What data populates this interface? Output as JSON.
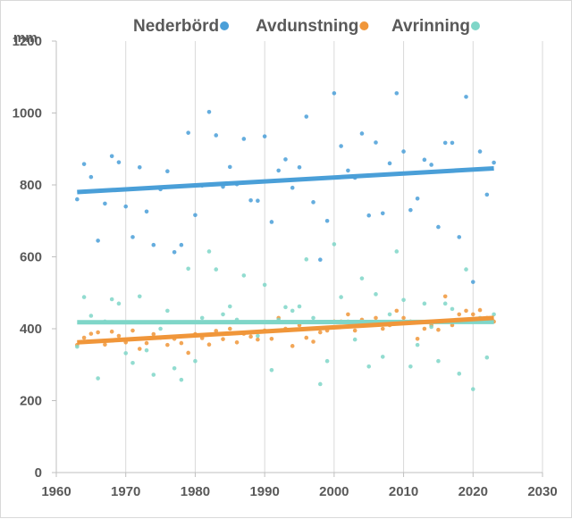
{
  "chart_data": {
    "type": "scatter",
    "ylabel": "mm",
    "xlim": [
      1960,
      2030
    ],
    "ylim": [
      0,
      1200
    ],
    "x_ticks": [
      1960,
      1970,
      1980,
      1990,
      2000,
      2010,
      2020,
      2030
    ],
    "y_ticks": [
      0,
      200,
      400,
      600,
      800,
      1000,
      1200
    ],
    "grid": "vertical",
    "legend_position": "top",
    "series": [
      {
        "name": "Nederbörd",
        "color": "#4a9fd8",
        "trend": [
          [
            1963,
            780
          ],
          [
            2023,
            846
          ]
        ],
        "points": [
          [
            1963,
            760
          ],
          [
            1964,
            858
          ],
          [
            1965,
            822
          ],
          [
            1966,
            645
          ],
          [
            1967,
            748
          ],
          [
            1968,
            880
          ],
          [
            1969,
            863
          ],
          [
            1970,
            740
          ],
          [
            1971,
            655
          ],
          [
            1972,
            849
          ],
          [
            1973,
            726
          ],
          [
            1974,
            633
          ],
          [
            1975,
            788
          ],
          [
            1976,
            838
          ],
          [
            1977,
            613
          ],
          [
            1978,
            633
          ],
          [
            1979,
            945
          ],
          [
            1980,
            716
          ],
          [
            1981,
            798
          ],
          [
            1982,
            1003
          ],
          [
            1983,
            938
          ],
          [
            1984,
            795
          ],
          [
            1985,
            850
          ],
          [
            1986,
            802
          ],
          [
            1987,
            928
          ],
          [
            1988,
            757
          ],
          [
            1989,
            756
          ],
          [
            1990,
            935
          ],
          [
            1991,
            697
          ],
          [
            1992,
            840
          ],
          [
            1993,
            871
          ],
          [
            1994,
            792
          ],
          [
            1995,
            849
          ],
          [
            1996,
            990
          ],
          [
            1997,
            752
          ],
          [
            1998,
            592
          ],
          [
            1999,
            700
          ],
          [
            2000,
            1055
          ],
          [
            2001,
            908
          ],
          [
            2002,
            840
          ],
          [
            2003,
            820
          ],
          [
            2004,
            943
          ],
          [
            2005,
            715
          ],
          [
            2006,
            918
          ],
          [
            2007,
            721
          ],
          [
            2008,
            860
          ],
          [
            2009,
            1055
          ],
          [
            2010,
            893
          ],
          [
            2011,
            730
          ],
          [
            2012,
            762
          ],
          [
            2013,
            870
          ],
          [
            2014,
            856
          ],
          [
            2015,
            683
          ],
          [
            2016,
            917
          ],
          [
            2017,
            917
          ],
          [
            2018,
            655
          ],
          [
            2019,
            1045
          ],
          [
            2020,
            530
          ],
          [
            2021,
            893
          ],
          [
            2022,
            773
          ],
          [
            2023,
            862
          ]
        ]
      },
      {
        "name": "Avdunstning",
        "color": "#f0963a",
        "trend": [
          [
            1963,
            362
          ],
          [
            2023,
            430
          ]
        ],
        "points": [
          [
            1963,
            355
          ],
          [
            1964,
            375
          ],
          [
            1965,
            386
          ],
          [
            1966,
            390
          ],
          [
            1967,
            356
          ],
          [
            1968,
            392
          ],
          [
            1969,
            380
          ],
          [
            1970,
            362
          ],
          [
            1971,
            395
          ],
          [
            1972,
            344
          ],
          [
            1973,
            360
          ],
          [
            1974,
            385
          ],
          [
            1975,
            375
          ],
          [
            1976,
            355
          ],
          [
            1977,
            372
          ],
          [
            1978,
            360
          ],
          [
            1979,
            333
          ],
          [
            1980,
            385
          ],
          [
            1981,
            374
          ],
          [
            1982,
            356
          ],
          [
            1983,
            394
          ],
          [
            1984,
            371
          ],
          [
            1985,
            400
          ],
          [
            1986,
            362
          ],
          [
            1987,
            386
          ],
          [
            1988,
            378
          ],
          [
            1989,
            370
          ],
          [
            1990,
            395
          ],
          [
            1991,
            372
          ],
          [
            1992,
            430
          ],
          [
            1993,
            400
          ],
          [
            1994,
            352
          ],
          [
            1995,
            410
          ],
          [
            1996,
            375
          ],
          [
            1997,
            364
          ],
          [
            1998,
            390
          ],
          [
            1999,
            395
          ],
          [
            2000,
            420
          ],
          [
            2001,
            420
          ],
          [
            2002,
            440
          ],
          [
            2003,
            395
          ],
          [
            2004,
            425
          ],
          [
            2005,
            410
          ],
          [
            2006,
            430
          ],
          [
            2007,
            400
          ],
          [
            2008,
            410
          ],
          [
            2009,
            450
          ],
          [
            2010,
            430
          ],
          [
            2011,
            420
          ],
          [
            2012,
            372
          ],
          [
            2013,
            400
          ],
          [
            2014,
            410
          ],
          [
            2015,
            397
          ],
          [
            2016,
            490
          ],
          [
            2017,
            410
          ],
          [
            2018,
            440
          ],
          [
            2019,
            450
          ],
          [
            2020,
            440
          ],
          [
            2021,
            452
          ],
          [
            2022,
            430
          ],
          [
            2023,
            420
          ]
        ]
      },
      {
        "name": "Avrinning",
        "color": "#7fd6c8",
        "trend": [
          [
            1963,
            418
          ],
          [
            2023,
            419
          ]
        ],
        "points": [
          [
            1963,
            350
          ],
          [
            1964,
            488
          ],
          [
            1965,
            436
          ],
          [
            1966,
            262
          ],
          [
            1967,
            420
          ],
          [
            1968,
            482
          ],
          [
            1969,
            470
          ],
          [
            1970,
            332
          ],
          [
            1971,
            305
          ],
          [
            1972,
            490
          ],
          [
            1973,
            340
          ],
          [
            1974,
            272
          ],
          [
            1975,
            400
          ],
          [
            1976,
            450
          ],
          [
            1977,
            290
          ],
          [
            1978,
            258
          ],
          [
            1979,
            567
          ],
          [
            1980,
            310
          ],
          [
            1981,
            430
          ],
          [
            1982,
            615
          ],
          [
            1983,
            565
          ],
          [
            1984,
            440
          ],
          [
            1985,
            462
          ],
          [
            1986,
            425
          ],
          [
            1987,
            548
          ],
          [
            1988,
            390
          ],
          [
            1989,
            380
          ],
          [
            1990,
            522
          ],
          [
            1991,
            285
          ],
          [
            1992,
            425
          ],
          [
            1993,
            460
          ],
          [
            1994,
            450
          ],
          [
            1995,
            462
          ],
          [
            1996,
            593
          ],
          [
            1997,
            430
          ],
          [
            1998,
            246
          ],
          [
            1999,
            310
          ],
          [
            2000,
            635
          ],
          [
            2001,
            488
          ],
          [
            2002,
            420
          ],
          [
            2003,
            370
          ],
          [
            2004,
            540
          ],
          [
            2005,
            295
          ],
          [
            2006,
            496
          ],
          [
            2007,
            322
          ],
          [
            2008,
            440
          ],
          [
            2009,
            615
          ],
          [
            2010,
            480
          ],
          [
            2011,
            295
          ],
          [
            2012,
            355
          ],
          [
            2013,
            470
          ],
          [
            2014,
            405
          ],
          [
            2015,
            310
          ],
          [
            2016,
            470
          ],
          [
            2017,
            455
          ],
          [
            2018,
            275
          ],
          [
            2019,
            565
          ],
          [
            2020,
            232
          ],
          [
            2021,
            430
          ],
          [
            2022,
            320
          ],
          [
            2023,
            440
          ]
        ]
      }
    ]
  }
}
